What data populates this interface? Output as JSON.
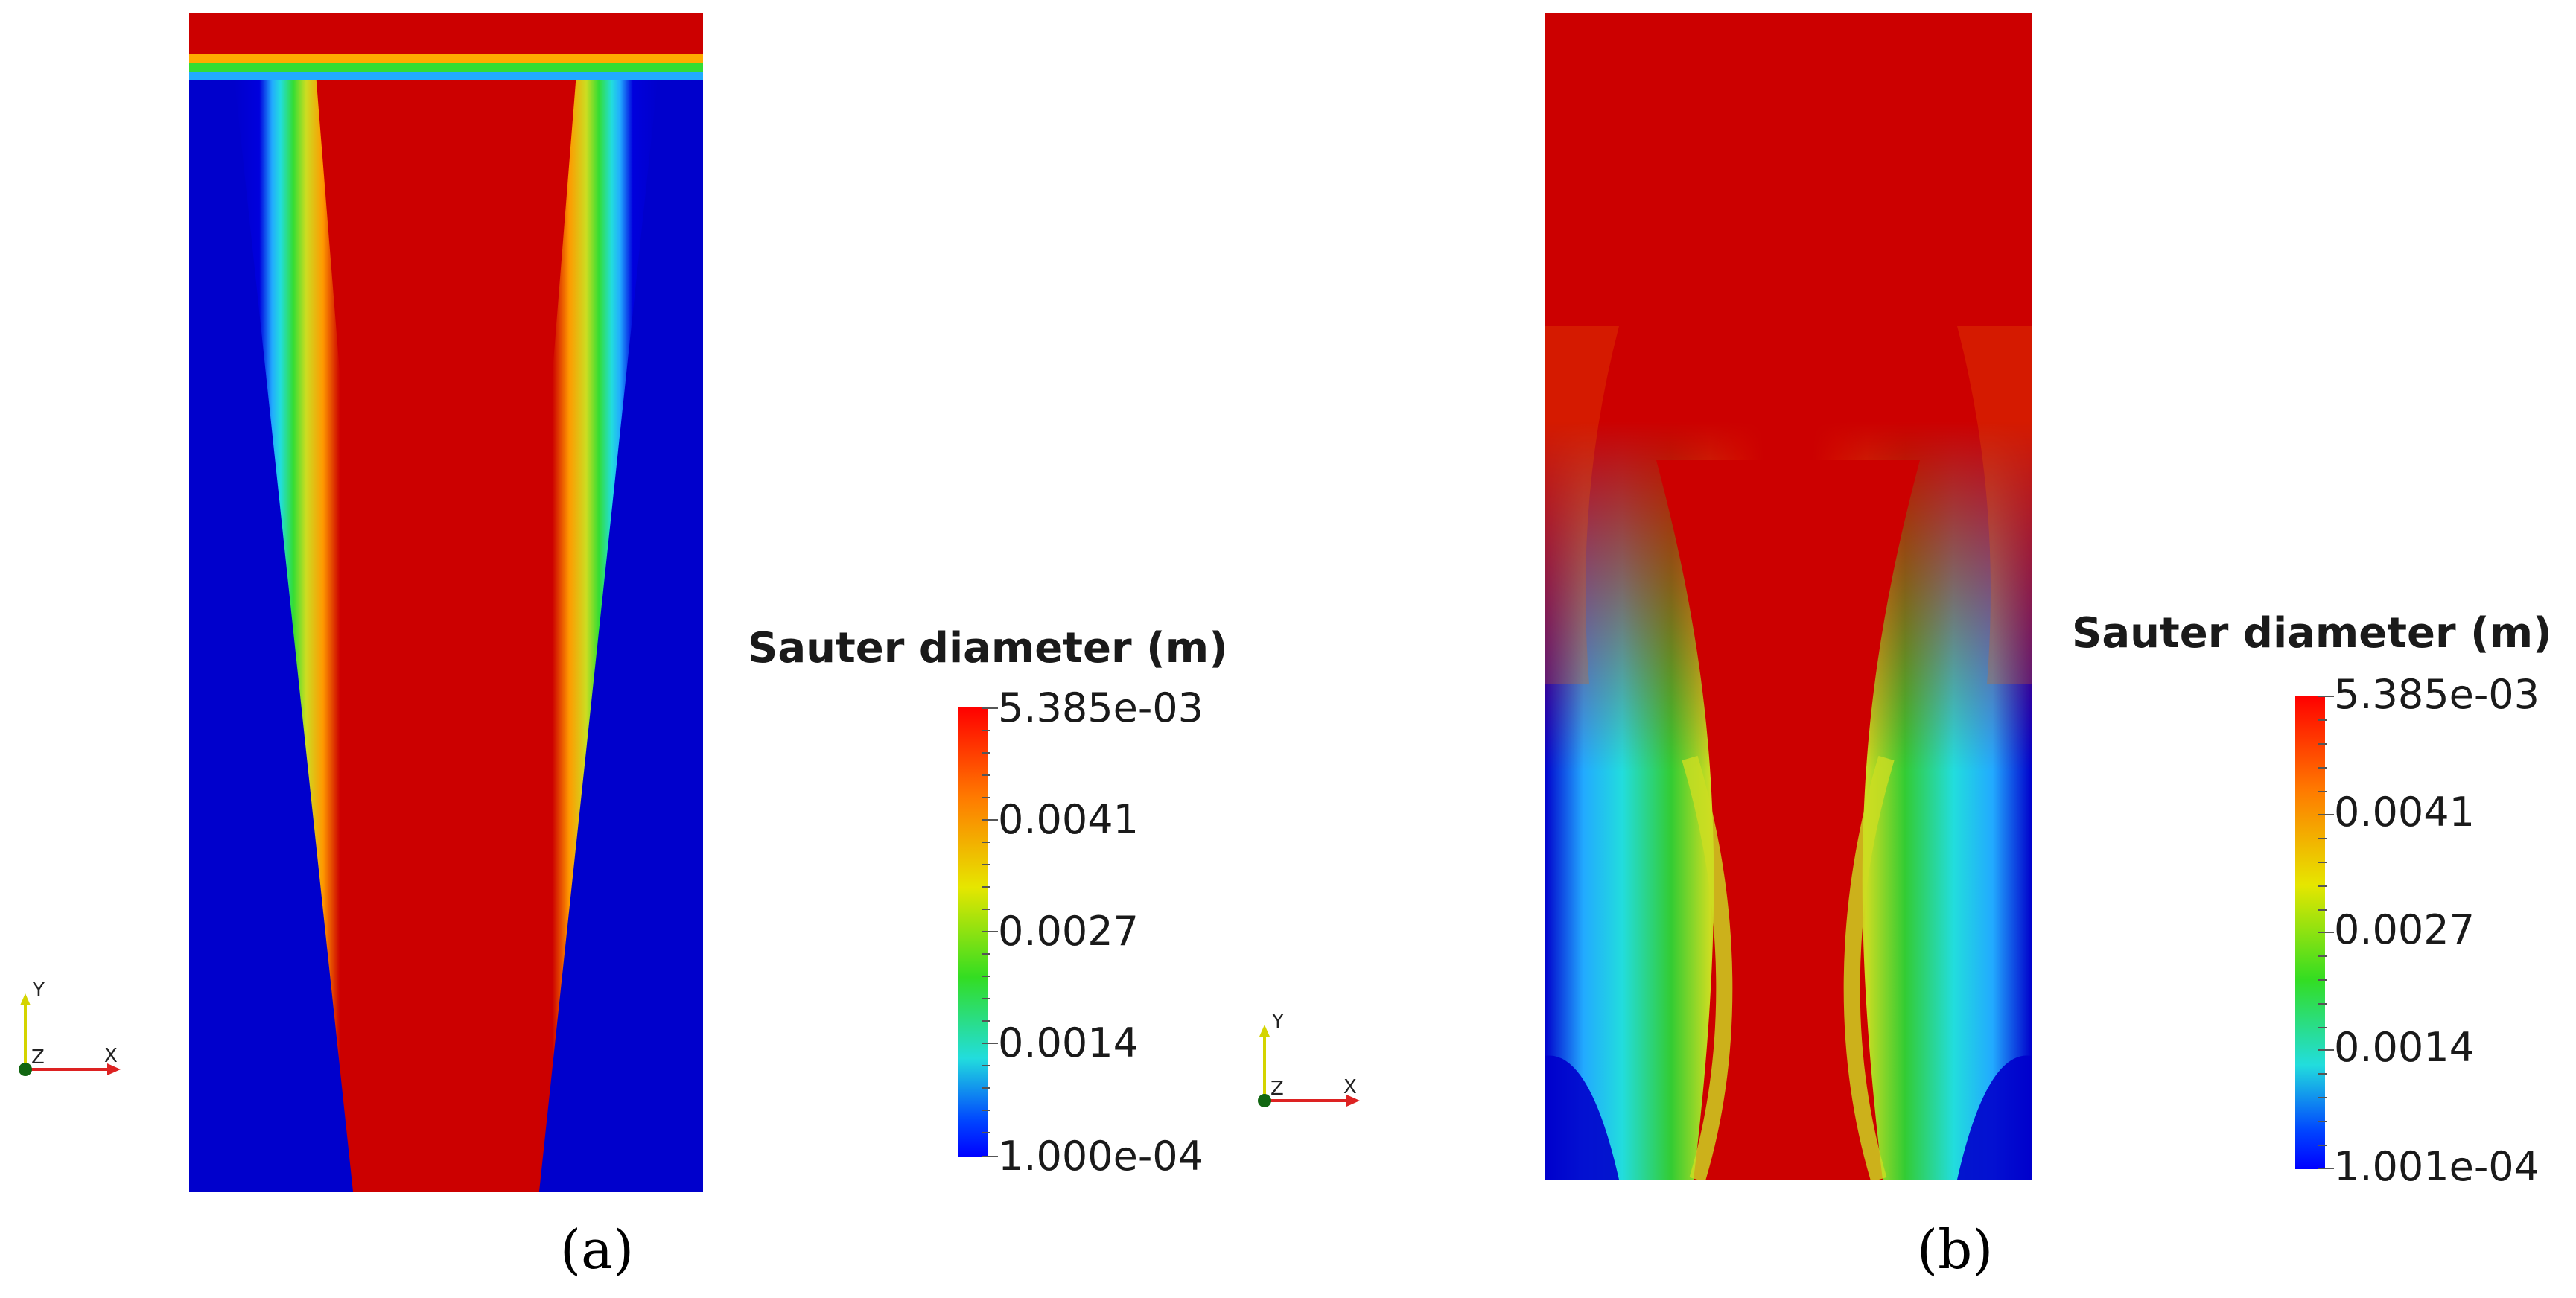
{
  "panels": [
    {
      "id": "a",
      "caption": "(a)",
      "legend_title": "Sauter diameter (m)",
      "tick_labels": [
        "5.385e-03",
        "0.0041",
        "0.0027",
        "0.0014",
        "1.000e-04"
      ],
      "axes": {
        "y": "Y",
        "z": "Z",
        "x": "X"
      }
    },
    {
      "id": "b",
      "caption": "(b)",
      "legend_title": "Sauter diameter (m)",
      "tick_labels": [
        "5.385e-03",
        "0.0041",
        "0.0027",
        "0.0014",
        "1.001e-04"
      ],
      "axes": {
        "y": "Y",
        "z": "Z",
        "x": "X"
      }
    }
  ],
  "colors": {
    "max": "#cc0000",
    "upper": "#ffdd00",
    "mid": "#22cc22",
    "low": "#22dddd",
    "min": "#0000cc"
  }
}
